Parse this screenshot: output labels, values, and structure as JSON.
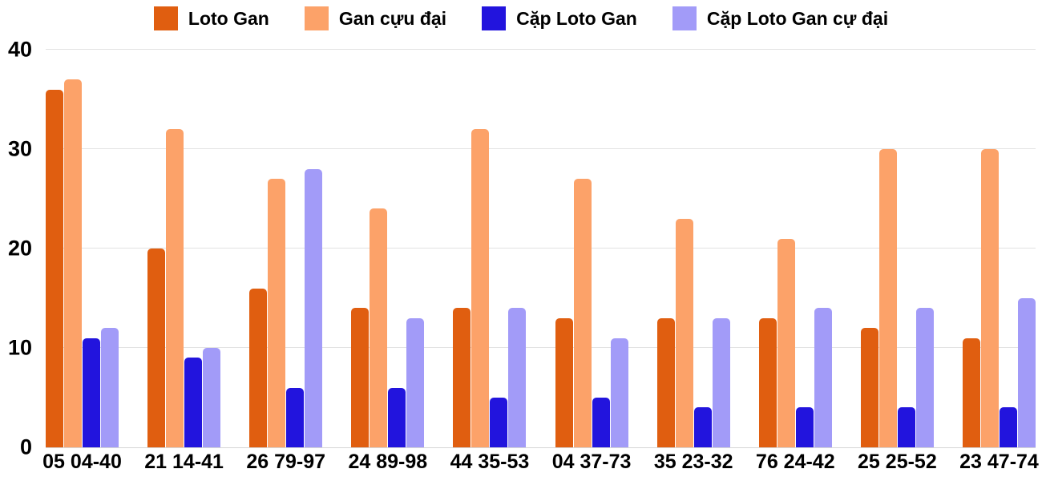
{
  "chart_data": {
    "type": "bar",
    "title": "",
    "categories": [
      "05 04-40",
      "21 14-41",
      "26 79-97",
      "24 89-98",
      "44 35-53",
      "04 37-73",
      "35 23-32",
      "76 24-42",
      "25 25-52",
      "23 47-74"
    ],
    "series": [
      {
        "name": "Loto Gan",
        "color": "#E05E10",
        "values": [
          36,
          20,
          16,
          14,
          14,
          13,
          13,
          13,
          12,
          11
        ]
      },
      {
        "name": "Gan cựu đại",
        "color": "#FCA269",
        "values": [
          37,
          32,
          27,
          24,
          32,
          27,
          23,
          21,
          30,
          30
        ]
      },
      {
        "name": "Cặp Loto Gan",
        "color": "#2214DD",
        "values": [
          11,
          9,
          6,
          6,
          5,
          5,
          4,
          4,
          4,
          4
        ]
      },
      {
        "name": "Cặp Loto Gan cự đại",
        "color": "#A29BF8",
        "values": [
          12,
          10,
          28,
          13,
          14,
          11,
          13,
          14,
          14,
          15
        ]
      }
    ],
    "ylim": [
      0,
      40
    ],
    "yticks": [
      40,
      30,
      20,
      10,
      0
    ],
    "grid": true,
    "legend_position": "top",
    "colors": {
      "gridline": "#E2E2E2",
      "baseline": "#D6D6D6",
      "axis_text": "#000000",
      "background": "#FFFFFF"
    }
  }
}
